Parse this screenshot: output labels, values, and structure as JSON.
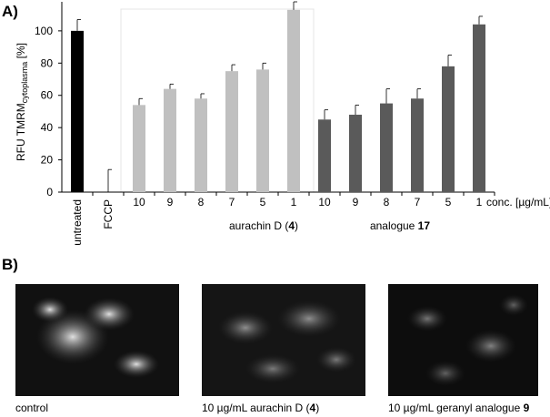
{
  "panel_labels": [
    "A)",
    "B)"
  ],
  "chart_data": {
    "type": "bar",
    "y_label": {
      "main": "RFU TMRM",
      "subscript": "cytoplasma",
      "unit": "[%]"
    },
    "categories": [
      "untreated",
      "FCCP",
      "10",
      "9",
      "8",
      "7",
      "5",
      "1",
      "10",
      "9",
      "8",
      "7",
      "5",
      "1"
    ],
    "values": [
      100,
      0,
      54,
      64,
      58,
      75,
      76,
      113,
      45,
      48,
      55,
      58,
      78,
      104
    ],
    "errors": [
      7,
      14,
      4,
      3,
      3,
      4,
      4,
      5,
      6,
      6,
      9,
      6,
      7,
      5
    ],
    "colors": [
      "#000000",
      "#000000",
      "#c0c0c0",
      "#c0c0c0",
      "#c0c0c0",
      "#c0c0c0",
      "#c0c0c0",
      "#c0c0c0",
      "#5a5a5a",
      "#5a5a5a",
      "#5a5a5a",
      "#5a5a5a",
      "#5a5a5a",
      "#5a5a5a"
    ],
    "x_unit_label": "conc. [µg/mL]",
    "group_labels": [
      {
        "text": "aurachin D (",
        "bold": "4",
        "after": ")"
      },
      {
        "text": "analogue ",
        "bold": "17",
        "after": ""
      }
    ],
    "ylim": [
      0,
      118
    ],
    "yticks": [
      0,
      20,
      40,
      60,
      80,
      100
    ]
  },
  "images": [
    {
      "caption": {
        "text": "control",
        "bold": "",
        "after": ""
      }
    },
    {
      "caption": {
        "text": "10 µg/mL aurachin D (",
        "bold": "4",
        "after": ")"
      }
    },
    {
      "caption": {
        "text": "10 µg/mL geranyl analogue ",
        "bold": "9",
        "after": ""
      }
    }
  ]
}
